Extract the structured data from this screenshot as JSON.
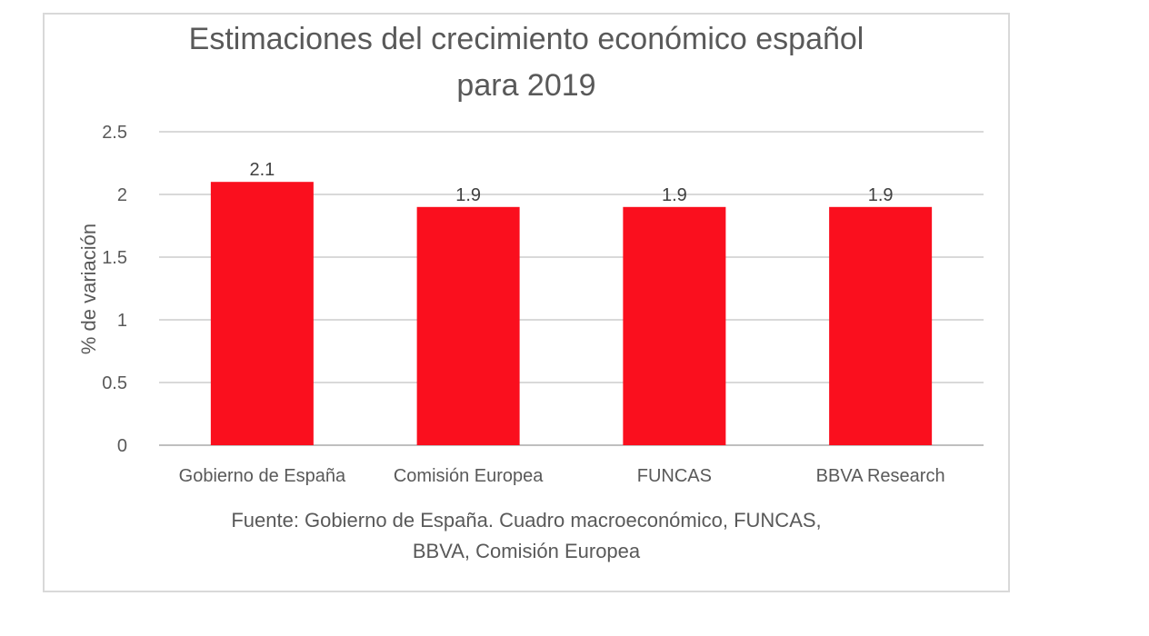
{
  "chart_data": {
    "type": "bar",
    "title_lines": [
      "Estimaciones del crecimiento económico español",
      "para 2019"
    ],
    "categories": [
      "Gobierno de España",
      "Comisión Europea",
      "FUNCAS",
      "BBVA Research"
    ],
    "values": [
      2.1,
      1.9,
      1.9,
      1.9
    ],
    "data_labels": [
      "2.1",
      "1.9",
      "1.9",
      "1.9"
    ],
    "ylabel": "% de variación",
    "ylim": [
      0,
      2.5
    ],
    "yticks": [
      "0",
      "0.5",
      "1",
      "1.5",
      "2",
      "2.5"
    ],
    "ytick_values": [
      0,
      0.5,
      1,
      1.5,
      2,
      2.5
    ],
    "grid": true,
    "bar_color": "#fa0f1e",
    "source_lines": [
      "Fuente: Gobierno de España. Cuadro macroeconómico, FUNCAS,",
      "BBVA, Comisión Europea"
    ]
  }
}
